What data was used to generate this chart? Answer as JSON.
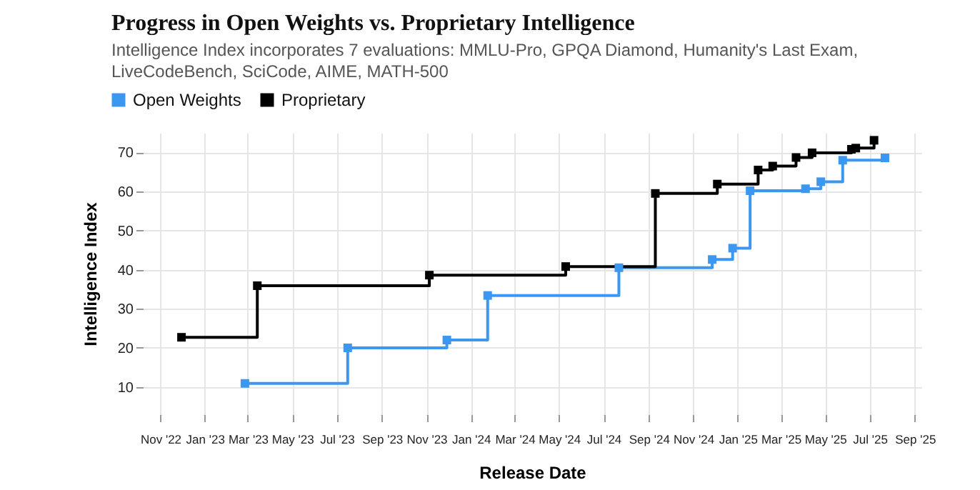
{
  "chart_data": {
    "type": "step",
    "title": "Progress in Open Weights vs. Proprietary Intelligence",
    "subtitle": "Intelligence Index incorporates 7 evaluations: MMLU-Pro, GPQA Diamond, Humanity's Last Exam, LiveCodeBench, SciCode, AIME, MATH-500",
    "xlabel": "Release Date",
    "ylabel": "Intelligence Index",
    "series": [
      {
        "name": "Open Weights",
        "color": "#3b97f0",
        "x": [
          "2023-02-25",
          "2023-07-16",
          "2023-11-29",
          "2024-01-24",
          "2024-07-22",
          "2024-11-27",
          "2024-12-25",
          "2025-01-18",
          "2025-04-04",
          "2025-04-25",
          "2025-05-25",
          "2025-07-22"
        ],
        "values": [
          10.9,
          20,
          22,
          33.4,
          40.5,
          42.6,
          45.5,
          60.2,
          60.7,
          62.5,
          68,
          68.6
        ]
      },
      {
        "name": "Proprietary",
        "color": "#000000",
        "x": [
          "2022-11-30",
          "2023-03-14",
          "2023-11-05",
          "2024-05-10",
          "2024-09-10",
          "2024-12-04",
          "2025-01-29",
          "2025-02-18",
          "2025-03-22",
          "2025-04-13",
          "2025-06-06",
          "2025-06-12",
          "2025-07-07"
        ],
        "values": [
          22.7,
          35.9,
          38.6,
          40.8,
          59.5,
          61.9,
          65.5,
          66.5,
          68.7,
          69.9,
          70.8,
          71.1,
          73.1
        ]
      }
    ],
    "xlim": [
      "2022-10-08",
      "2025-09-10"
    ],
    "xticks": [
      {
        "value": "2022-11",
        "label": "Nov '22"
      },
      {
        "value": "2023-01",
        "label": "Jan '23"
      },
      {
        "value": "2023-03",
        "label": "Mar '23"
      },
      {
        "value": "2023-05",
        "label": "May '23"
      },
      {
        "value": "2023-07",
        "label": "Jul '23"
      },
      {
        "value": "2023-09",
        "label": "Sep '23"
      },
      {
        "value": "2023-11",
        "label": "Nov '23"
      },
      {
        "value": "2024-01",
        "label": "Jan '24"
      },
      {
        "value": "2024-03",
        "label": "Mar '24"
      },
      {
        "value": "2024-05",
        "label": "May '24"
      },
      {
        "value": "2024-07",
        "label": "Jul '24"
      },
      {
        "value": "2024-09",
        "label": "Sep '24"
      },
      {
        "value": "2024-11",
        "label": "Nov '24"
      },
      {
        "value": "2025-01",
        "label": "Jan '25"
      },
      {
        "value": "2025-03",
        "label": "Mar '25"
      },
      {
        "value": "2025-05",
        "label": "May '25"
      },
      {
        "value": "2025-07",
        "label": "Jul '25"
      },
      {
        "value": "2025-09",
        "label": "Sep '25"
      }
    ],
    "ylim": [
      3,
      75
    ],
    "yticks": [
      10,
      20,
      30,
      40,
      50,
      60,
      70
    ],
    "grid": true,
    "legend": "top left",
    "marker": "square",
    "line_style": "solid"
  }
}
